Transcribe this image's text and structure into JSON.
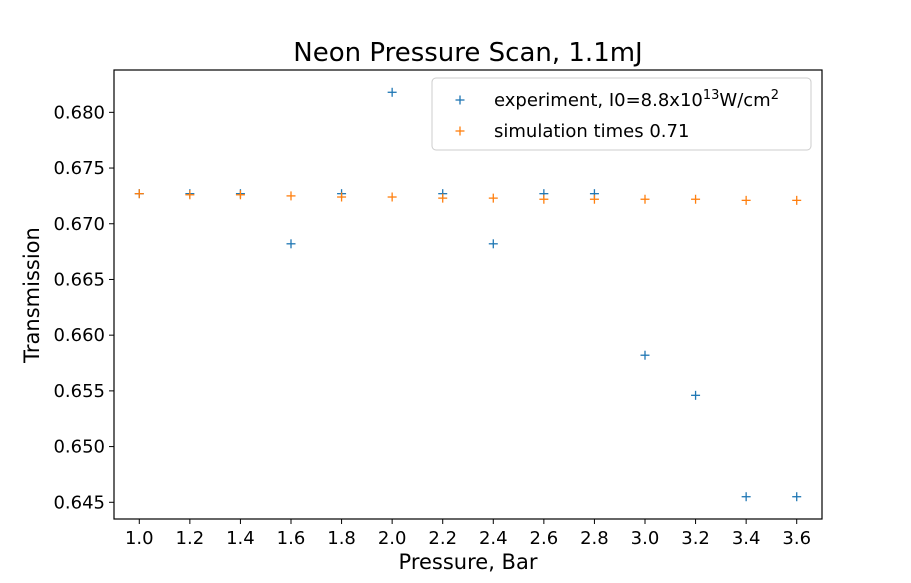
{
  "chart_data": {
    "type": "scatter",
    "title": "Neon Pressure Scan, 1.1mJ",
    "xlabel": "Pressure, Bar",
    "ylabel": "Transmission",
    "xlim": [
      0.9,
      3.7
    ],
    "ylim": [
      0.6435,
      0.6838
    ],
    "xticks": [
      "1.0",
      "1.2",
      "1.4",
      "1.6",
      "1.8",
      "2.0",
      "2.2",
      "2.4",
      "2.6",
      "2.8",
      "3.0",
      "3.2",
      "3.4",
      "3.6"
    ],
    "yticks": [
      "0.645",
      "0.650",
      "0.655",
      "0.660",
      "0.665",
      "0.670",
      "0.675",
      "0.680"
    ],
    "legend_position": "upper-right",
    "grid": false,
    "series": [
      {
        "name_prefix": "experiment, I0=8.8x10",
        "name_sup1": "13",
        "name_mid": "W/cm",
        "name_sup2": "2",
        "marker": "+",
        "color": "#1f77b4",
        "x": [
          1.0,
          1.2,
          1.4,
          1.6,
          1.8,
          2.0,
          2.2,
          2.4,
          2.6,
          2.8,
          3.0,
          3.2,
          3.4,
          3.6
        ],
        "y": [
          0.6727,
          0.6727,
          0.6727,
          0.6682,
          0.6727,
          0.6818,
          0.6727,
          0.6682,
          0.6727,
          0.6727,
          0.6582,
          0.6546,
          0.6455,
          0.6455
        ]
      },
      {
        "name": "simulation times 0.71",
        "marker": "+",
        "color": "#ff7f0e",
        "x": [
          1.0,
          1.2,
          1.4,
          1.6,
          1.8,
          2.0,
          2.2,
          2.4,
          2.6,
          2.8,
          3.0,
          3.2,
          3.4,
          3.6
        ],
        "y": [
          0.6727,
          0.6726,
          0.6726,
          0.6725,
          0.6724,
          0.6724,
          0.6723,
          0.6723,
          0.6722,
          0.6722,
          0.6722,
          0.6722,
          0.6721,
          0.6721
        ]
      }
    ]
  }
}
